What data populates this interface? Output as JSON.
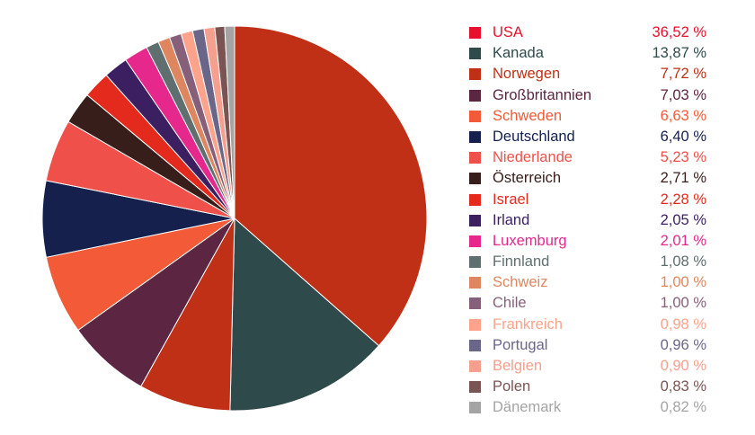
{
  "chart_data": {
    "type": "pie",
    "title": "",
    "start_angle_deg": 0,
    "direction": "clockwise",
    "legend_position": "right",
    "slices": [
      {
        "label": "USA",
        "value_label": "36,52 %",
        "value": 36.52,
        "color": "#c03016",
        "legend_color": "#e8112d"
      },
      {
        "label": "Kanada",
        "value_label": "13,87 %",
        "value": 13.87,
        "color": "#2e4a4b",
        "legend_color": "#2e4a4b"
      },
      {
        "label": "Norwegen",
        "value_label": "7,72 %",
        "value": 7.72,
        "color": "#c03016",
        "legend_color": "#c03016"
      },
      {
        "label": "Großbritannien",
        "value_label": "7,03 %",
        "value": 7.03,
        "color": "#5c2542",
        "legend_color": "#5c2542"
      },
      {
        "label": "Schweden",
        "value_label": "6,63 %",
        "value": 6.63,
        "color": "#f25a38",
        "legend_color": "#f25a38"
      },
      {
        "label": "Deutschland",
        "value_label": "6,40 %",
        "value": 6.4,
        "color": "#15204d",
        "legend_color": "#15204d"
      },
      {
        "label": "Niederlande",
        "value_label": "5,23 %",
        "value": 5.23,
        "color": "#f0504a",
        "legend_color": "#f0504a"
      },
      {
        "label": "Österreich",
        "value_label": "2,71 %",
        "value": 2.71,
        "color": "#381e1a",
        "legend_color": "#381e1a"
      },
      {
        "label": "Israel",
        "value_label": "2,28 %",
        "value": 2.28,
        "color": "#e42a1d",
        "legend_color": "#e42a1d"
      },
      {
        "label": "Irland",
        "value_label": "2,05 %",
        "value": 2.05,
        "color": "#3b1f60",
        "legend_color": "#3b1f60"
      },
      {
        "label": "Luxemburg",
        "value_label": "2,01 %",
        "value": 2.01,
        "color": "#e6288c",
        "legend_color": "#e6288c"
      },
      {
        "label": "Finnland",
        "value_label": "1,08 %",
        "value": 1.08,
        "color": "#5f6e6e",
        "legend_color": "#5f6e6e"
      },
      {
        "label": "Schweiz",
        "value_label": "1,00 %",
        "value": 1.0,
        "color": "#de8660",
        "legend_color": "#de8660"
      },
      {
        "label": "Chile",
        "value_label": "1,00 %",
        "value": 1.0,
        "color": "#86607a",
        "legend_color": "#86607a"
      },
      {
        "label": "Frankreich",
        "value_label": "0,98 %",
        "value": 0.98,
        "color": "#fda38b",
        "legend_color": "#fda38b"
      },
      {
        "label": "Portugal",
        "value_label": "0,96 %",
        "value": 0.96,
        "color": "#6a6689",
        "legend_color": "#6a6689"
      },
      {
        "label": "Belgien",
        "value_label": "0,90 %",
        "value": 0.9,
        "color": "#f5a08e",
        "legend_color": "#f5a08e"
      },
      {
        "label": "Polen",
        "value_label": "0,83 %",
        "value": 0.83,
        "color": "#7a5452",
        "legend_color": "#7a5452"
      },
      {
        "label": "Dänemark",
        "value_label": "0,82 %",
        "value": 0.82,
        "color": "#a4a4a4",
        "legend_color": "#a4a4a4"
      }
    ]
  }
}
